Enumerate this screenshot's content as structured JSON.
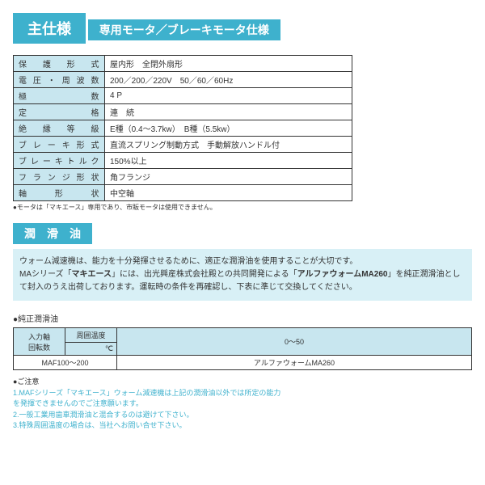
{
  "main_title": "主仕様",
  "section1_title": "専用モータ／ブレーキモータ仕様",
  "spec_rows": [
    {
      "label": "保護形式",
      "value": "屋内形　全閉外扇形"
    },
    {
      "label": "電圧・周波数",
      "value": "200／200／220V　50／60／60Hz"
    },
    {
      "label": "極数",
      "value": "4 P"
    },
    {
      "label": "定格",
      "value": "連　続"
    },
    {
      "label": "絶縁等級",
      "value": "E種（0.4～3.7kw）　B種（5.5kw）"
    },
    {
      "label": "ブレーキ形式",
      "value": "直流スプリング制動方式　手動解放ハンドル付"
    },
    {
      "label": "ブレーキトルク",
      "value": "150%以上"
    },
    {
      "label": "フランジ形状",
      "value": "角フランジ"
    },
    {
      "label": "軸形状",
      "value": "中空軸"
    }
  ],
  "spec_note": "●モータは「マキエース」専用であり、市販モータは使用できません。",
  "section2_title": "潤　滑　油",
  "info_text_1": "ウォーム減速機は、能力を十分発揮させるために、適正な潤滑油を使用することが大切です。",
  "info_text_2a": "MAシリーズ「",
  "info_text_2b": "マキエース",
  "info_text_2c": "」には、出光興産株式会社殿との共同開発による「",
  "info_text_2d": "アルファウォームMA260",
  "info_text_2e": "」を純正潤滑油として封入のうえ出荷しております。運転時の条件を再確認し、下表に準じて交換してください。",
  "lube_label": "●純正潤滑油",
  "lube_tab": {
    "r1c1": "入力軸\n回転数",
    "r1c2a": "周囲温度",
    "r1c2b": "℃",
    "r1c3": "0～50",
    "r2c1": "MAF100～200",
    "r2c2": "アルファウォームMA260"
  },
  "notes_header": "●ご注意",
  "notes": [
    "1.MAFシリーズ「マキエース」ウォーム減速機は上記の潤滑油以外では所定の能力\nを発揮できませんのでご注意願います。",
    "2.一般工業用歯車潤滑油と混合するのは避けて下さい。",
    "3.特殊周囲温度の場合は、当社へお問い合せ下さい。"
  ]
}
